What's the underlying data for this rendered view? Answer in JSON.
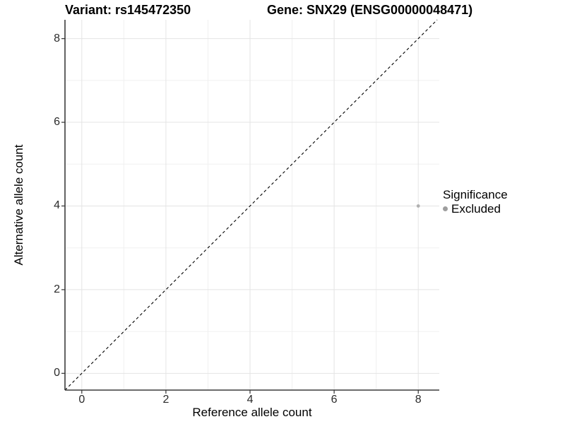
{
  "figure": {
    "title_left": "Variant: rs145472350",
    "title_right": "Gene: SNX29 (ENSG00000048471)"
  },
  "chart_data": {
    "type": "scatter",
    "title": "Variant: rs145472350   Gene: SNX29 (ENSG00000048471)",
    "xlabel": "Reference allele count",
    "ylabel": "Alternative allele count",
    "xlim": [
      -0.4,
      8.5
    ],
    "ylim": [
      -0.4,
      8.45
    ],
    "x_ticks": [
      0,
      2,
      4,
      6,
      8
    ],
    "y_ticks": [
      0,
      2,
      4,
      6,
      8
    ],
    "grid": {
      "x_major": [
        0,
        2,
        4,
        6,
        8
      ],
      "x_minor": [
        1,
        3,
        5,
        7
      ],
      "y_major": [
        0,
        2,
        4,
        6,
        8
      ],
      "y_minor": [
        1,
        3,
        5,
        7
      ],
      "on": true
    },
    "reference_line": {
      "kind": "identity y=x",
      "style": "dashed",
      "color": "#000000"
    },
    "series": [
      {
        "name": "Excluded",
        "color": "#b0b0b0",
        "points": [
          {
            "x": 8,
            "y": 4
          }
        ]
      }
    ],
    "legend": {
      "title": "Significance",
      "position": "right",
      "items": [
        {
          "label": "Excluded",
          "color": "#9e9e9e"
        }
      ]
    }
  },
  "colors": {
    "background": "#ffffff",
    "grid_major": "#e4e4e4",
    "grid_minor": "#f0f0f0",
    "axis_line": "#3c3c3c",
    "tick_mark": "#333333",
    "point": "#b0b0b0",
    "legend_dot": "#9e9e9e",
    "dashed_line": "#000000"
  }
}
